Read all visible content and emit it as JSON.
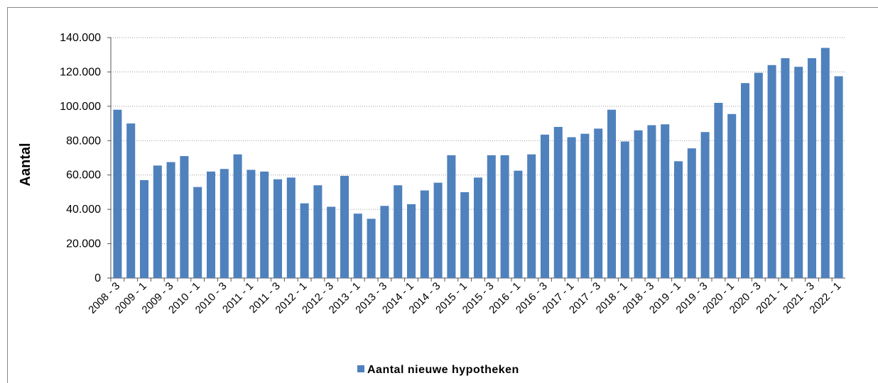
{
  "chart_data": {
    "type": "bar",
    "y_label": "Aantal",
    "categories": [
      "2008 - 3",
      null,
      "2009 - 1",
      null,
      "2009 - 3",
      null,
      "2010 - 1",
      null,
      "2010 - 3",
      null,
      "2011 - 1",
      null,
      "2011 - 3",
      null,
      "2012 - 1",
      null,
      "2012 - 3",
      null,
      "2013 - 1",
      null,
      "2013 - 3",
      null,
      "2014 - 1",
      null,
      "2014 - 3",
      null,
      "2015 - 1",
      null,
      "2015 - 3",
      null,
      "2016 - 1",
      null,
      "2016 - 3",
      null,
      "2017 - 1",
      null,
      "2017 - 3",
      null,
      "2018 - 1",
      null,
      "2018 - 3",
      null,
      "2019 - 1",
      null,
      "2019 - 3",
      null,
      "2020 - 1",
      null,
      "2020 - 3",
      null,
      "2021 - 1",
      null,
      "2021 - 3",
      null,
      "2022 - 1"
    ],
    "series": [
      {
        "name": "Aantal nieuwe hypotheken",
        "color": "#4f81bd",
        "values": [
          98000,
          90000,
          57000,
          65500,
          67500,
          71000,
          53000,
          62000,
          63500,
          72000,
          63000,
          62000,
          57500,
          58500,
          43500,
          54000,
          41500,
          59500,
          37500,
          34500,
          42000,
          54000,
          43000,
          51000,
          55500,
          71500,
          50000,
          58500,
          71500,
          71500,
          62500,
          72000,
          83500,
          88000,
          82000,
          84000,
          87000,
          98000,
          79500,
          86000,
          89000,
          89500,
          68000,
          75500,
          85000,
          102000,
          95500,
          113500,
          119500,
          124000,
          128000,
          123000,
          128000,
          134000,
          117500
        ]
      }
    ],
    "ylim": [
      0,
      140000
    ],
    "yticks": [
      0,
      {
        "value": 20000,
        "label": "20.000"
      },
      {
        "value": 40000,
        "label": "40.000"
      },
      {
        "value": 60000,
        "label": "60.000"
      },
      {
        "value": 80000,
        "label": "80.000"
      },
      {
        "value": 100000,
        "label": "100.000"
      },
      {
        "value": 120000,
        "label": "120.000"
      },
      {
        "value": 140000,
        "label": "140.000"
      }
    ],
    "grid": true,
    "legend": "bottom"
  }
}
